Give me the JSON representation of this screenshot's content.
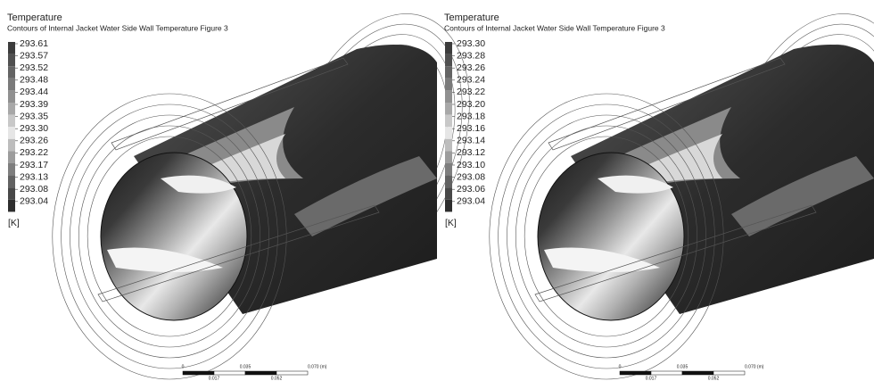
{
  "panels": [
    {
      "title": "Temperature",
      "subtitle": "Contours of Internal Jacket Water Side Wall Temperature Figure 3",
      "legend_labels": [
        "293.61",
        "293.57",
        "293.52",
        "293.48",
        "293.44",
        "293.39",
        "293.35",
        "293.30",
        "293.26",
        "293.22",
        "293.17",
        "293.13",
        "293.08",
        "293.04"
      ],
      "unit": "[K]",
      "scale_top": [
        "0",
        "0.035",
        "0.070 (m)"
      ],
      "scale_bottom": [
        "0.017",
        "0.052"
      ]
    },
    {
      "title": "Temperature",
      "subtitle": "Contours of Internal Jacket Water Side Wall Temperature Figure 3",
      "legend_labels": [
        "293.30",
        "293.28",
        "293.26",
        "293.24",
        "293.22",
        "293.20",
        "293.18",
        "293.16",
        "293.14",
        "293.12",
        "293.10",
        "293.08",
        "293.06",
        "293.04"
      ],
      "unit": "[K]",
      "scale_top": [
        "0",
        "0.035",
        "0.070 (m)"
      ],
      "scale_bottom": [
        "0.017",
        "0.052"
      ]
    }
  ]
}
